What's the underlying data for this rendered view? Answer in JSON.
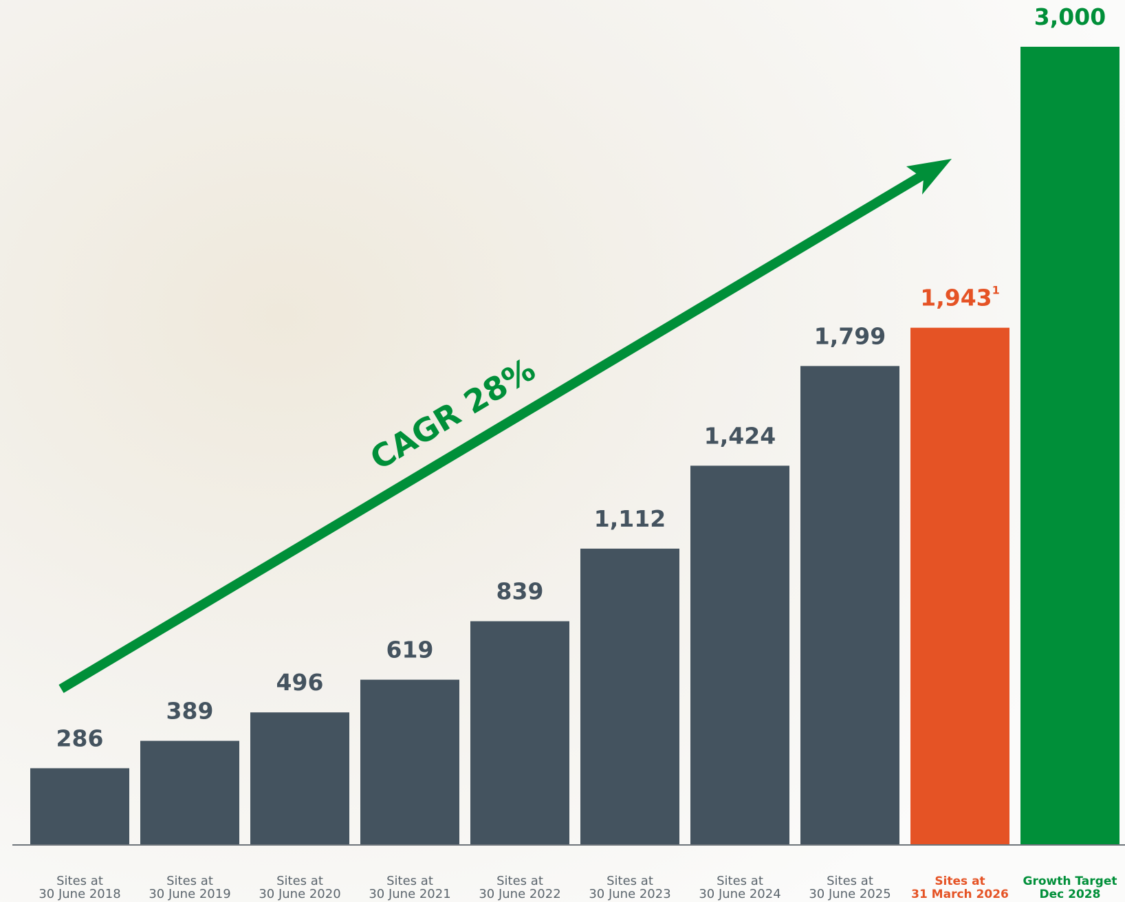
{
  "chart_data": {
    "type": "bar",
    "annotation": "CAGR 28%",
    "categories": [
      [
        "Sites at",
        "30 June 2018"
      ],
      [
        "Sites at",
        "30 June 2019"
      ],
      [
        "Sites at",
        "30 June 2020"
      ],
      [
        "Sites at",
        "30 June 2021"
      ],
      [
        "Sites at",
        "30 June 2022"
      ],
      [
        "Sites at",
        "30 June 2023"
      ],
      [
        "Sites at",
        "30 June 2024"
      ],
      [
        "Sites at",
        "30 June 2025"
      ],
      [
        "Sites at",
        "31 March 2026"
      ],
      [
        "Growth Target",
        "Dec 2028"
      ]
    ],
    "values": [
      286,
      389,
      496,
      619,
      839,
      1112,
      1424,
      1799,
      1943,
      3000
    ],
    "value_labels": [
      "286",
      "389",
      "496",
      "619",
      "839",
      "1,112",
      "1,424",
      "1,799",
      "1,943",
      "3,000"
    ],
    "value_label_superscripts": [
      null,
      null,
      null,
      null,
      null,
      null,
      null,
      null,
      "1",
      null
    ],
    "colors": [
      "#44535f",
      "#44535f",
      "#44535f",
      "#44535f",
      "#44535f",
      "#44535f",
      "#44535f",
      "#44535f",
      "#e55325",
      "#008f39"
    ],
    "label_colors": [
      "#44535f",
      "#44535f",
      "#44535f",
      "#44535f",
      "#44535f",
      "#44535f",
      "#44535f",
      "#44535f",
      "#e55325",
      "#008f39"
    ],
    "category_colors": [
      "#5a646c",
      "#5a646c",
      "#5a646c",
      "#5a646c",
      "#5a646c",
      "#5a646c",
      "#5a646c",
      "#5a646c",
      "#e55325",
      "#008f39"
    ]
  }
}
